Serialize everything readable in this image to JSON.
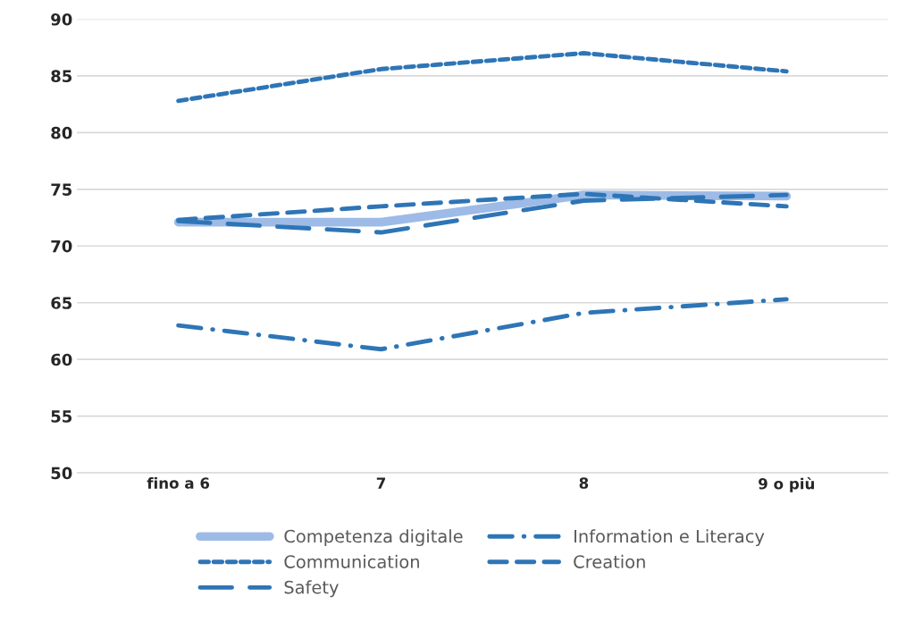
{
  "chart_data": {
    "type": "line",
    "categories": [
      "fino a 6",
      "7",
      "8",
      "9 o più"
    ],
    "series": [
      {
        "name": "Competenza digitale",
        "color": "#9dbbe6",
        "line_style": "solid",
        "values": [
          72.1,
          72.1,
          74.5,
          74.4
        ]
      },
      {
        "name": "Information e Literacy",
        "color": "#2e75b6",
        "line_style": "dashdot",
        "values": [
          63.0,
          60.9,
          64.1,
          65.3
        ]
      },
      {
        "name": "Communication",
        "color": "#2e75b6",
        "line_style": "dotted",
        "values": [
          82.8,
          85.6,
          87.0,
          85.4
        ]
      },
      {
        "name": "Creation",
        "color": "#2e75b6",
        "line_style": "dashed",
        "values": [
          72.3,
          73.5,
          74.6,
          73.5
        ]
      },
      {
        "name": "Safety",
        "color": "#2e75b6",
        "line_style": "longdash",
        "values": [
          72.2,
          71.2,
          74.0,
          74.5
        ]
      }
    ],
    "ylim": [
      50,
      90
    ],
    "yticks": [
      50,
      55,
      60,
      65,
      70,
      75,
      80,
      85,
      90
    ],
    "grid": "y",
    "legend": "bottom",
    "marker": "none"
  }
}
